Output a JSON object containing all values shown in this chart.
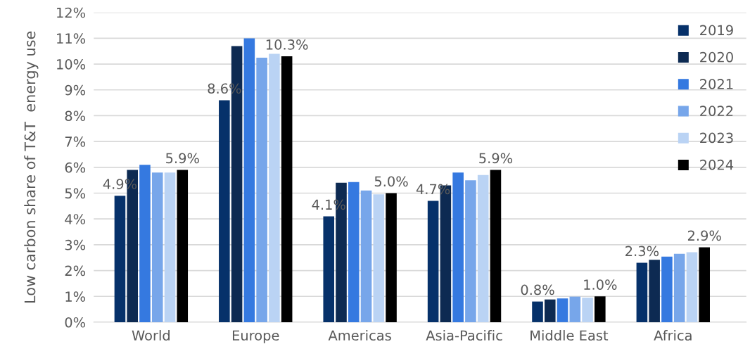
{
  "chart_data": {
    "type": "bar",
    "ylabel": "Low carbon share of T&T  energy use",
    "categories": [
      "World",
      "Europe",
      "Americas",
      "Asia-Pacific",
      "Middle East",
      "Africa"
    ],
    "series": [
      {
        "name": "2019",
        "color": "#06316a",
        "values": [
          4.9,
          8.6,
          4.1,
          4.7,
          0.8,
          2.3
        ],
        "value_labels": [
          "4.9%",
          "8.6%",
          "4.1%",
          "4.7%",
          "0.8%",
          "2.3%"
        ]
      },
      {
        "name": "2020",
        "color": "#0d2a52",
        "values": [
          5.9,
          10.7,
          5.4,
          5.3,
          0.88,
          2.42
        ]
      },
      {
        "name": "2021",
        "color": "#3579e0",
        "values": [
          6.1,
          11.0,
          5.43,
          5.8,
          0.92,
          2.54
        ]
      },
      {
        "name": "2022",
        "color": "#77a6ea",
        "values": [
          5.8,
          10.25,
          5.1,
          5.5,
          0.99,
          2.65
        ]
      },
      {
        "name": "2023",
        "color": "#bad3f4",
        "values": [
          5.8,
          10.4,
          4.95,
          5.7,
          0.95,
          2.71
        ]
      },
      {
        "name": "2024",
        "color": "#000000",
        "values": [
          5.9,
          10.3,
          5.0,
          5.9,
          1.0,
          2.9
        ],
        "value_labels": [
          "5.9%",
          "10.3%",
          "5.0%",
          "5.9%",
          "1.0%",
          "2.9%"
        ]
      }
    ],
    "ylim": [
      0,
      12
    ],
    "yticks": [
      {
        "value": 0,
        "label": "0%"
      },
      {
        "value": 1,
        "label": "1%"
      },
      {
        "value": 2,
        "label": "2%"
      },
      {
        "value": 3,
        "label": "3%"
      },
      {
        "value": 4,
        "label": "4%"
      },
      {
        "value": 5,
        "label": "5%"
      },
      {
        "value": 6,
        "label": "6%"
      },
      {
        "value": 7,
        "label": "7%"
      },
      {
        "value": 8,
        "label": "8%"
      },
      {
        "value": 9,
        "label": "9%"
      },
      {
        "value": 10,
        "label": "10%"
      },
      {
        "value": 11,
        "label": "11%"
      },
      {
        "value": 12,
        "label": "12%"
      }
    ],
    "grid": "y",
    "legend": "top right"
  }
}
